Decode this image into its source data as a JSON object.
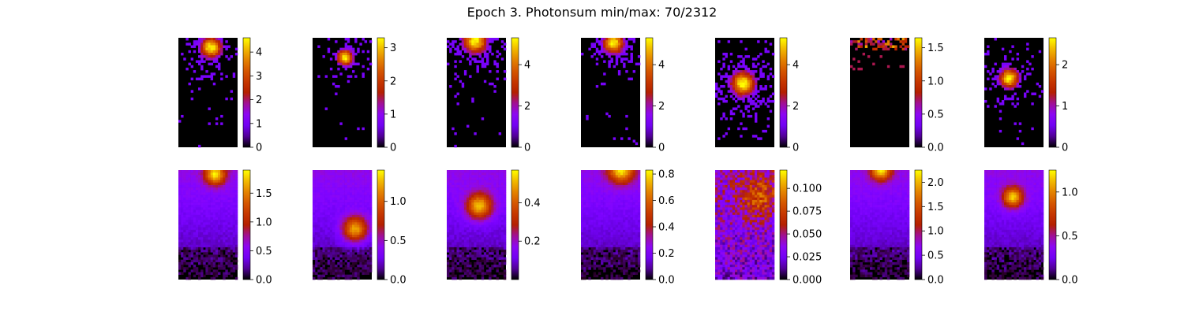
{
  "figure": {
    "title": "Epoch 3. Photonsum min/max: 70/2312",
    "colormap": "gnuplot",
    "background": "#ffffff"
  },
  "chart_data": [
    {
      "type": "heatmap",
      "row": 1,
      "col": 1,
      "style": "sparse",
      "hotspot": {
        "x": 0.55,
        "y": 0.09,
        "sigma": 0.13
      },
      "spread": 0.55,
      "vmin": 0,
      "vmax": 4.6,
      "ticks": [
        0,
        1,
        2,
        3,
        4
      ],
      "tick_labels": [
        "0",
        "1",
        "2",
        "3",
        "4"
      ]
    },
    {
      "type": "heatmap",
      "row": 1,
      "col": 2,
      "style": "sparse",
      "hotspot": {
        "x": 0.55,
        "y": 0.18,
        "sigma": 0.1
      },
      "spread": 0.4,
      "vmin": 0,
      "vmax": 3.3,
      "ticks": [
        0,
        1,
        2,
        3
      ],
      "tick_labels": [
        "0",
        "1",
        "2",
        "3"
      ]
    },
    {
      "type": "heatmap",
      "row": 1,
      "col": 3,
      "style": "sparse",
      "hotspot": {
        "x": 0.48,
        "y": 0.03,
        "sigma": 0.15
      },
      "spread": 0.6,
      "vmin": 0,
      "vmax": 5.3,
      "ticks": [
        0,
        2,
        4
      ],
      "tick_labels": [
        "0",
        "2",
        "4"
      ]
    },
    {
      "type": "heatmap",
      "row": 1,
      "col": 4,
      "style": "sparse",
      "hotspot": {
        "x": 0.55,
        "y": 0.05,
        "sigma": 0.13
      },
      "spread": 0.6,
      "vmin": 0,
      "vmax": 5.3,
      "ticks": [
        0,
        2,
        4
      ],
      "tick_labels": [
        "0",
        "2",
        "4"
      ]
    },
    {
      "type": "heatmap",
      "row": 1,
      "col": 5,
      "style": "sparse",
      "hotspot": {
        "x": 0.47,
        "y": 0.42,
        "sigma": 0.15
      },
      "spread": 0.7,
      "vmin": 0,
      "vmax": 5.3,
      "ticks": [
        0,
        2,
        4
      ],
      "tick_labels": [
        "0",
        "2",
        "4"
      ]
    },
    {
      "type": "heatmap",
      "row": 1,
      "col": 6,
      "style": "edge",
      "hotspot": {
        "x": 0.5,
        "y": 0.02,
        "sigma": 0.06
      },
      "spread": 0.2,
      "vmin": 0,
      "vmax": 1.65,
      "ticks": [
        0,
        0.5,
        1,
        1.5
      ],
      "tick_labels": [
        "0.0",
        "0.5",
        "1.0",
        "1.5"
      ]
    },
    {
      "type": "heatmap",
      "row": 1,
      "col": 7,
      "style": "sparse",
      "hotspot": {
        "x": 0.42,
        "y": 0.37,
        "sigma": 0.12
      },
      "spread": 0.45,
      "vmin": 0,
      "vmax": 2.65,
      "ticks": [
        0,
        1,
        2
      ],
      "tick_labels": [
        "0",
        "1",
        "2"
      ]
    },
    {
      "type": "heatmap",
      "row": 2,
      "col": 1,
      "style": "smooth",
      "hotspot": {
        "x": 0.62,
        "y": 0.04,
        "sigma": 0.12
      },
      "vmin": 0,
      "vmax": 1.9,
      "ticks": [
        0,
        0.5,
        1,
        1.5
      ],
      "tick_labels": [
        "0.0",
        "0.5",
        "1.0",
        "1.5"
      ]
    },
    {
      "type": "heatmap",
      "row": 2,
      "col": 2,
      "style": "smooth",
      "hotspot": {
        "x": 0.72,
        "y": 0.54,
        "sigma": 0.15
      },
      "vmin": 0,
      "vmax": 1.4,
      "ticks": [
        0,
        0.5,
        1
      ],
      "tick_labels": [
        "0.0",
        "0.5",
        "1.0"
      ]
    },
    {
      "type": "heatmap",
      "row": 2,
      "col": 3,
      "style": "smooth",
      "hotspot": {
        "x": 0.55,
        "y": 0.33,
        "sigma": 0.15
      },
      "vmin": 0,
      "vmax": 0.57,
      "ticks": [
        0.2,
        0.4
      ],
      "tick_labels": [
        "0.2",
        "0.4"
      ]
    },
    {
      "type": "heatmap",
      "row": 2,
      "col": 4,
      "style": "smooth",
      "hotspot": {
        "x": 0.68,
        "y": 0.0,
        "sigma": 0.15
      },
      "vmin": 0,
      "vmax": 0.83,
      "ticks": [
        0,
        0.2,
        0.4,
        0.6,
        0.8
      ],
      "tick_labels": [
        "0.0",
        "0.2",
        "0.4",
        "0.6",
        "0.8"
      ]
    },
    {
      "type": "heatmap",
      "row": 2,
      "col": 5,
      "style": "noisy",
      "hotspot": {
        "x": 0.75,
        "y": 0.25,
        "sigma": 0.25
      },
      "vmin": 0,
      "vmax": 0.12,
      "ticks": [
        0,
        0.025,
        0.05,
        0.075,
        0.1
      ],
      "tick_labels": [
        "0.000",
        "0.025",
        "0.050",
        "0.075",
        "0.100"
      ]
    },
    {
      "type": "heatmap",
      "row": 2,
      "col": 6,
      "style": "smooth",
      "hotspot": {
        "x": 0.52,
        "y": 0.0,
        "sigma": 0.12
      },
      "vmin": 0,
      "vmax": 2.25,
      "ticks": [
        0,
        0.5,
        1,
        1.5,
        2
      ],
      "tick_labels": [
        "0.0",
        "0.5",
        "1.0",
        "1.5",
        "2.0"
      ]
    },
    {
      "type": "heatmap",
      "row": 2,
      "col": 7,
      "style": "smooth",
      "hotspot": {
        "x": 0.48,
        "y": 0.25,
        "sigma": 0.12
      },
      "vmin": 0,
      "vmax": 1.25,
      "ticks": [
        0,
        0.5,
        1
      ],
      "tick_labels": [
        "0.0",
        "0.5",
        "1.0"
      ]
    }
  ]
}
